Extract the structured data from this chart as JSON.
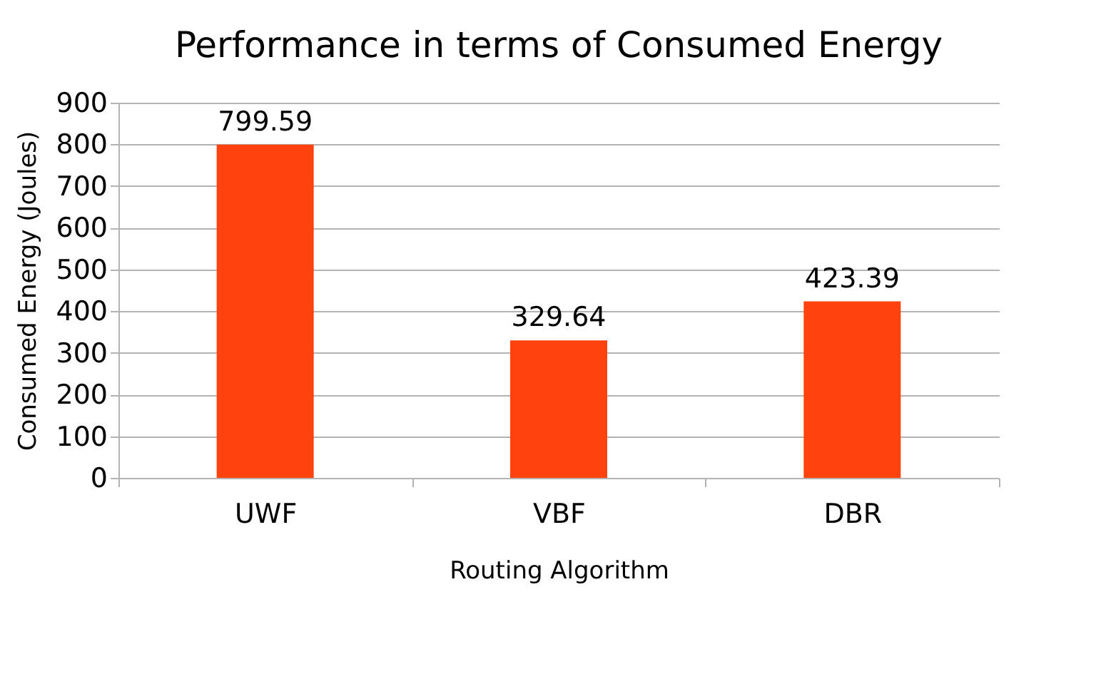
{
  "chart_data": {
    "type": "bar",
    "title": "Performance in terms of Consumed Energy",
    "xlabel": "Routing Algorithm",
    "ylabel": "Consumed Energy (Joules)",
    "categories": [
      "UWF",
      "VBF",
      "DBR"
    ],
    "values": [
      799.59,
      329.64,
      423.39
    ],
    "color": "#ff420e",
    "ylim": [
      0,
      900
    ],
    "yticks": [
      0,
      100,
      200,
      300,
      400,
      500,
      600,
      700,
      800,
      900
    ],
    "grid": "y",
    "data_labels": true
  }
}
